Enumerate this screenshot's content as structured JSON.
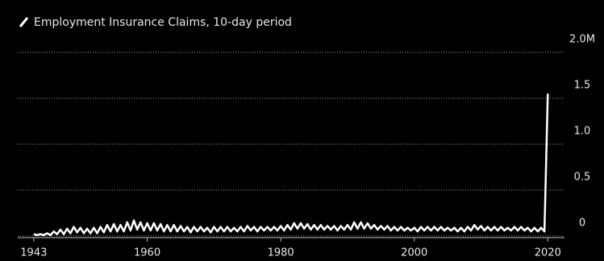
{
  "chart_data": {
    "type": "line",
    "series": [
      {
        "name": "Employment Insurance Claims, 10-day period",
        "color": "#ffffff",
        "values": [
          0.02,
          0.01,
          0.02,
          0.01,
          0.03,
          0.01,
          0.05,
          0.02,
          0.07,
          0.02,
          0.08,
          0.03,
          0.1,
          0.04,
          0.09,
          0.03,
          0.08,
          0.03,
          0.09,
          0.03,
          0.1,
          0.04,
          0.12,
          0.05,
          0.13,
          0.05,
          0.12,
          0.05,
          0.15,
          0.06,
          0.17,
          0.07,
          0.15,
          0.06,
          0.14,
          0.06,
          0.14,
          0.06,
          0.13,
          0.05,
          0.12,
          0.05,
          0.12,
          0.05,
          0.11,
          0.05,
          0.1,
          0.04,
          0.1,
          0.05,
          0.1,
          0.05,
          0.09,
          0.04,
          0.1,
          0.05,
          0.1,
          0.05,
          0.1,
          0.05,
          0.09,
          0.05,
          0.1,
          0.05,
          0.11,
          0.06,
          0.1,
          0.05,
          0.1,
          0.06,
          0.1,
          0.06,
          0.1,
          0.06,
          0.11,
          0.06,
          0.12,
          0.07,
          0.14,
          0.08,
          0.14,
          0.08,
          0.13,
          0.07,
          0.12,
          0.07,
          0.12,
          0.07,
          0.11,
          0.07,
          0.11,
          0.06,
          0.11,
          0.07,
          0.12,
          0.07,
          0.15,
          0.08,
          0.15,
          0.08,
          0.14,
          0.08,
          0.12,
          0.07,
          0.11,
          0.07,
          0.11,
          0.06,
          0.1,
          0.06,
          0.1,
          0.06,
          0.09,
          0.06,
          0.09,
          0.05,
          0.1,
          0.06,
          0.1,
          0.06,
          0.1,
          0.06,
          0.1,
          0.06,
          0.09,
          0.06,
          0.09,
          0.05,
          0.09,
          0.05,
          0.1,
          0.06,
          0.12,
          0.07,
          0.11,
          0.06,
          0.1,
          0.06,
          0.1,
          0.06,
          0.1,
          0.06,
          0.09,
          0.06,
          0.1,
          0.06,
          0.1,
          0.06,
          0.09,
          0.05,
          0.09,
          0.05,
          0.09,
          0.05,
          1.55
        ]
      }
    ],
    "x": [
      1943,
      1943.5,
      1944,
      1944.5,
      1945,
      1945.5,
      1946,
      1946.5,
      1947,
      1947.5,
      1948,
      1948.5,
      1949,
      1949.5,
      1950,
      1950.5,
      1951,
      1951.5,
      1952,
      1952.5,
      1953,
      1953.5,
      1954,
      1954.5,
      1955,
      1955.5,
      1956,
      1956.5,
      1957,
      1957.5,
      1958,
      1958.5,
      1959,
      1959.5,
      1960,
      1960.5,
      1961,
      1961.5,
      1962,
      1962.5,
      1963,
      1963.5,
      1964,
      1964.5,
      1965,
      1965.5,
      1966,
      1966.5,
      1967,
      1967.5,
      1968,
      1968.5,
      1969,
      1969.5,
      1970,
      1970.5,
      1971,
      1971.5,
      1972,
      1972.5,
      1973,
      1973.5,
      1974,
      1974.5,
      1975,
      1975.5,
      1976,
      1976.5,
      1977,
      1977.5,
      1978,
      1978.5,
      1979,
      1979.5,
      1980,
      1980.5,
      1981,
      1981.5,
      1982,
      1982.5,
      1983,
      1983.5,
      1984,
      1984.5,
      1985,
      1985.5,
      1986,
      1986.5,
      1987,
      1987.5,
      1988,
      1988.5,
      1989,
      1989.5,
      1990,
      1990.5,
      1991,
      1991.5,
      1992,
      1992.5,
      1993,
      1993.5,
      1994,
      1994.5,
      1995,
      1995.5,
      1996,
      1996.5,
      1997,
      1997.5,
      1998,
      1998.5,
      1999,
      1999.5,
      2000,
      2000.5,
      2001,
      2001.5,
      2002,
      2002.5,
      2003,
      2003.5,
      2004,
      2004.5,
      2005,
      2005.5,
      2006,
      2006.5,
      2007,
      2007.5,
      2008,
      2008.5,
      2009,
      2009.5,
      2010,
      2010.5,
      2011,
      2011.5,
      2012,
      2012.5,
      2013,
      2013.5,
      2014,
      2014.5,
      2015,
      2015.5,
      2016,
      2016.5,
      2017,
      2017.5,
      2018,
      2018.5,
      2019,
      2019.5,
      2020
    ],
    "xlim": [
      1940,
      2022.5
    ],
    "xticks": [
      1943,
      1960,
      1980,
      2000,
      2020
    ],
    "ylim": [
      0,
      2
    ],
    "yticks": [
      0,
      0.5,
      {
        "value": 1,
        "label": "1.0"
      },
      1.5,
      {
        "value": 2,
        "label": "2.0M"
      }
    ],
    "grid": true
  }
}
